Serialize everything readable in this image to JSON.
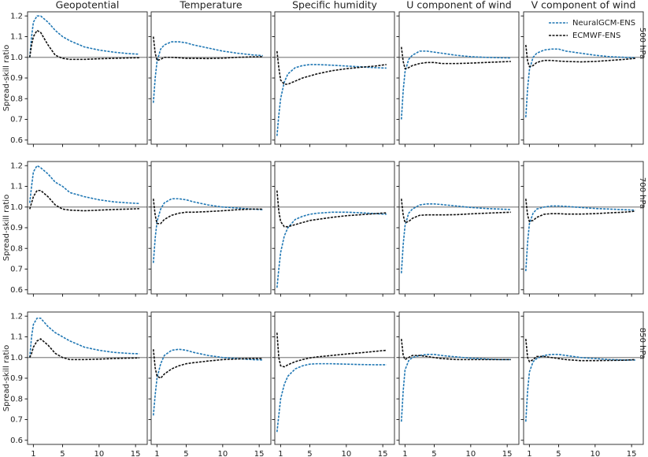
{
  "chart_data": [
    {
      "type": "line",
      "title": "Geopotential",
      "ylabel": "Spread-skill ratio",
      "x": [
        0.5,
        0.75,
        1,
        1.5,
        2,
        3,
        4,
        5,
        6,
        8,
        10,
        12,
        14,
        15.5
      ],
      "xlim": [
        0.2,
        16.6
      ],
      "xticks": [
        1,
        5,
        10,
        15
      ],
      "ylim": [
        0.58,
        1.22
      ],
      "yticks": [
        0.6,
        0.7,
        0.8,
        0.9,
        {
          "value": 1,
          "label": "1.0"
        },
        1.1,
        1.2
      ],
      "hline": 1,
      "linestyle": "dashed",
      "series": [
        {
          "color": "#1f77b4",
          "values": [
            1.0,
            1.1,
            1.17,
            1.2,
            1.2,
            1.17,
            1.13,
            1.1,
            1.08,
            1.05,
            1.035,
            1.025,
            1.018,
            1.015
          ]
        },
        {
          "color": "#111111",
          "values": [
            1.0,
            1.06,
            1.1,
            1.13,
            1.12,
            1.06,
            1.01,
            0.995,
            0.99,
            0.99,
            0.993,
            0.995,
            0.997,
            0.998
          ]
        }
      ]
    },
    {
      "type": "line",
      "title": "Temperature",
      "x": [
        0.5,
        0.75,
        1,
        1.5,
        2,
        3,
        4,
        5,
        6,
        8,
        10,
        12,
        14,
        15.5
      ],
      "xlim": [
        0.2,
        16.6
      ],
      "xticks": [
        1,
        5,
        10,
        15
      ],
      "ylim": [
        0.58,
        1.22
      ],
      "yticks": [
        0.6,
        0.7,
        0.8,
        0.9,
        1,
        1.1,
        1.2
      ],
      "hline": 1,
      "linestyle": "dashed",
      "series": [
        {
          "color": "#1f77b4",
          "values": [
            0.78,
            0.9,
            0.98,
            1.04,
            1.06,
            1.075,
            1.075,
            1.07,
            1.06,
            1.045,
            1.03,
            1.02,
            1.012,
            1.008
          ]
        },
        {
          "color": "#111111",
          "values": [
            1.1,
            1.02,
            0.985,
            0.99,
            1.0,
            1.0,
            0.998,
            0.995,
            0.995,
            0.994,
            0.996,
            1.0,
            1.002,
            1.003
          ]
        }
      ]
    },
    {
      "type": "line",
      "title": "Specific humidity",
      "x": [
        0.5,
        0.75,
        1,
        1.5,
        2,
        3,
        4,
        5,
        6,
        8,
        10,
        12,
        14,
        15.5
      ],
      "xlim": [
        0.2,
        16.6
      ],
      "xticks": [
        1,
        5,
        10,
        15
      ],
      "ylim": [
        0.58,
        1.22
      ],
      "yticks": [
        0.6,
        0.7,
        0.8,
        0.9,
        1,
        1.1,
        1.2
      ],
      "hline": 1,
      "linestyle": "dashed",
      "series": [
        {
          "color": "#1f77b4",
          "values": [
            0.62,
            0.72,
            0.8,
            0.88,
            0.92,
            0.95,
            0.96,
            0.965,
            0.965,
            0.962,
            0.958,
            0.954,
            0.95,
            0.948
          ]
        },
        {
          "color": "#111111",
          "values": [
            1.03,
            0.95,
            0.89,
            0.87,
            0.87,
            0.885,
            0.9,
            0.91,
            0.92,
            0.935,
            0.945,
            0.952,
            0.958,
            0.965
          ]
        }
      ]
    },
    {
      "type": "line",
      "title": "U component of wind",
      "x": [
        0.5,
        0.75,
        1,
        1.5,
        2,
        3,
        4,
        5,
        6,
        8,
        10,
        12,
        14,
        15.5
      ],
      "xlim": [
        0.2,
        16.6
      ],
      "xticks": [
        1,
        5,
        10,
        15
      ],
      "ylim": [
        0.58,
        1.22
      ],
      "yticks": [
        0.6,
        0.7,
        0.8,
        0.9,
        1,
        1.1,
        1.2
      ],
      "hline": 1,
      "linestyle": "dashed",
      "series": [
        {
          "color": "#1f77b4",
          "values": [
            0.7,
            0.84,
            0.93,
            0.99,
            1.01,
            1.03,
            1.03,
            1.025,
            1.02,
            1.01,
            1.003,
            1.0,
            0.998,
            0.997
          ]
        },
        {
          "color": "#111111",
          "values": [
            1.05,
            0.98,
            0.945,
            0.95,
            0.96,
            0.97,
            0.975,
            0.975,
            0.97,
            0.97,
            0.972,
            0.975,
            0.978,
            0.98
          ]
        }
      ]
    },
    {
      "type": "line",
      "title": "V component of wind",
      "row_label": "500 hPa",
      "legend": "upper right",
      "x": [
        0.5,
        0.75,
        1,
        1.5,
        2,
        3,
        4,
        5,
        6,
        8,
        10,
        12,
        14,
        15.5
      ],
      "xlim": [
        0.2,
        16.6
      ],
      "xticks": [
        1,
        5,
        10,
        15
      ],
      "ylim": [
        0.58,
        1.22
      ],
      "yticks": [
        0.6,
        0.7,
        0.8,
        0.9,
        1,
        1.1,
        1.2
      ],
      "hline": 1,
      "linestyle": "dashed",
      "series": [
        {
          "name": "NeuralGCM-ENS",
          "color": "#1f77b4",
          "values": [
            0.71,
            0.85,
            0.94,
            1.0,
            1.02,
            1.035,
            1.04,
            1.04,
            1.03,
            1.02,
            1.01,
            1.003,
            1.0,
            0.998
          ]
        },
        {
          "name": "ECMWF-ENS",
          "color": "#111111",
          "values": [
            1.06,
            0.98,
            0.955,
            0.96,
            0.975,
            0.985,
            0.985,
            0.982,
            0.98,
            0.978,
            0.98,
            0.985,
            0.99,
            0.995
          ]
        }
      ]
    },
    {
      "type": "line",
      "ylabel": "Spread-skill ratio",
      "x": [
        0.5,
        0.75,
        1,
        1.5,
        2,
        3,
        4,
        5,
        6,
        8,
        10,
        12,
        14,
        15.5
      ],
      "xlim": [
        0.2,
        16.6
      ],
      "xticks": [
        1,
        5,
        10,
        15
      ],
      "ylim": [
        0.58,
        1.22
      ],
      "yticks": [
        0.6,
        0.7,
        0.8,
        0.9,
        {
          "value": 1,
          "label": "1.0"
        },
        1.1,
        1.2
      ],
      "hline": 1,
      "linestyle": "dashed",
      "series": [
        {
          "color": "#1f77b4",
          "values": [
            1.02,
            1.1,
            1.17,
            1.2,
            1.19,
            1.16,
            1.12,
            1.1,
            1.07,
            1.05,
            1.035,
            1.025,
            1.02,
            1.017
          ]
        },
        {
          "color": "#111111",
          "values": [
            0.99,
            1.02,
            1.05,
            1.08,
            1.08,
            1.05,
            1.01,
            0.99,
            0.985,
            0.982,
            0.985,
            0.988,
            0.99,
            0.992
          ]
        }
      ]
    },
    {
      "type": "line",
      "x": [
        0.5,
        0.75,
        1,
        1.5,
        2,
        3,
        4,
        5,
        6,
        8,
        10,
        12,
        14,
        15.5
      ],
      "xlim": [
        0.2,
        16.6
      ],
      "xticks": [
        1,
        5,
        10,
        15
      ],
      "ylim": [
        0.58,
        1.22
      ],
      "yticks": [
        0.6,
        0.7,
        0.8,
        0.9,
        1,
        1.1,
        1.2
      ],
      "hline": 1,
      "linestyle": "dashed",
      "series": [
        {
          "color": "#1f77b4",
          "values": [
            0.73,
            0.85,
            0.93,
            0.99,
            1.02,
            1.04,
            1.04,
            1.035,
            1.025,
            1.01,
            1.0,
            0.995,
            0.99,
            0.987
          ]
        },
        {
          "color": "#111111",
          "values": [
            1.04,
            0.96,
            0.92,
            0.92,
            0.94,
            0.96,
            0.97,
            0.975,
            0.975,
            0.978,
            0.982,
            0.987,
            0.99,
            0.99
          ]
        }
      ]
    },
    {
      "type": "line",
      "x": [
        0.5,
        0.75,
        1,
        1.5,
        2,
        3,
        4,
        5,
        6,
        8,
        10,
        12,
        14,
        15.5
      ],
      "xlim": [
        0.2,
        16.6
      ],
      "xticks": [
        1,
        5,
        10,
        15
      ],
      "ylim": [
        0.58,
        1.22
      ],
      "yticks": [
        0.6,
        0.7,
        0.8,
        0.9,
        1,
        1.1,
        1.2
      ],
      "hline": 1,
      "linestyle": "dashed",
      "series": [
        {
          "color": "#1f77b4",
          "values": [
            0.61,
            0.7,
            0.78,
            0.86,
            0.9,
            0.94,
            0.955,
            0.965,
            0.97,
            0.975,
            0.975,
            0.972,
            0.968,
            0.965
          ]
        },
        {
          "color": "#111111",
          "values": [
            1.08,
            0.98,
            0.93,
            0.905,
            0.905,
            0.915,
            0.925,
            0.935,
            0.94,
            0.95,
            0.958,
            0.963,
            0.968,
            0.972
          ]
        }
      ]
    },
    {
      "type": "line",
      "x": [
        0.5,
        0.75,
        1,
        1.5,
        2,
        3,
        4,
        5,
        6,
        8,
        10,
        12,
        14,
        15.5
      ],
      "xlim": [
        0.2,
        16.6
      ],
      "xticks": [
        1,
        5,
        10,
        15
      ],
      "ylim": [
        0.58,
        1.22
      ],
      "yticks": [
        0.6,
        0.7,
        0.8,
        0.9,
        1,
        1.1,
        1.2
      ],
      "hline": 1,
      "linestyle": "dashed",
      "series": [
        {
          "color": "#1f77b4",
          "values": [
            0.68,
            0.82,
            0.91,
            0.97,
            0.99,
            1.01,
            1.015,
            1.015,
            1.012,
            1.005,
            0.998,
            0.993,
            0.99,
            0.988
          ]
        },
        {
          "color": "#111111",
          "values": [
            1.04,
            0.96,
            0.925,
            0.93,
            0.945,
            0.96,
            0.962,
            0.962,
            0.962,
            0.963,
            0.967,
            0.97,
            0.973,
            0.975
          ]
        }
      ]
    },
    {
      "type": "line",
      "row_label": "700 hPa",
      "x": [
        0.5,
        0.75,
        1,
        1.5,
        2,
        3,
        4,
        5,
        6,
        8,
        10,
        12,
        14,
        15.5
      ],
      "xlim": [
        0.2,
        16.6
      ],
      "xticks": [
        1,
        5,
        10,
        15
      ],
      "ylim": [
        0.58,
        1.22
      ],
      "yticks": [
        0.6,
        0.7,
        0.8,
        0.9,
        1,
        1.1,
        1.2
      ],
      "hline": 1,
      "linestyle": "dashed",
      "series": [
        {
          "color": "#1f77b4",
          "values": [
            0.69,
            0.83,
            0.92,
            0.97,
            0.99,
            1.0,
            1.005,
            1.005,
            1.003,
            0.998,
            0.993,
            0.99,
            0.987,
            0.985
          ]
        },
        {
          "color": "#111111",
          "values": [
            1.04,
            0.96,
            0.93,
            0.935,
            0.95,
            0.965,
            0.968,
            0.968,
            0.966,
            0.966,
            0.968,
            0.972,
            0.975,
            0.98
          ]
        }
      ]
    },
    {
      "type": "line",
      "ylabel": "Spread-skill ratio",
      "x": [
        0.5,
        0.75,
        1,
        1.5,
        2,
        3,
        4,
        5,
        6,
        8,
        10,
        12,
        14,
        15.5
      ],
      "xlim": [
        0.2,
        16.6
      ],
      "xticks": [
        1,
        5,
        10,
        15
      ],
      "ylim": [
        0.58,
        1.22
      ],
      "yticks": [
        0.6,
        0.7,
        0.8,
        0.9,
        {
          "value": 1,
          "label": "1.0"
        },
        1.1,
        1.2
      ],
      "hline": 1,
      "linestyle": "dashed",
      "series": [
        {
          "color": "#1f77b4",
          "values": [
            1.0,
            1.1,
            1.16,
            1.19,
            1.19,
            1.15,
            1.12,
            1.1,
            1.08,
            1.05,
            1.035,
            1.025,
            1.02,
            1.018
          ]
        },
        {
          "color": "#111111",
          "values": [
            1.0,
            1.02,
            1.05,
            1.08,
            1.09,
            1.06,
            1.02,
            1.0,
            0.99,
            0.99,
            0.992,
            0.995,
            0.997,
            0.998
          ]
        }
      ]
    },
    {
      "type": "line",
      "x": [
        0.5,
        0.75,
        1,
        1.5,
        2,
        3,
        4,
        5,
        6,
        8,
        10,
        12,
        14,
        15.5
      ],
      "xlim": [
        0.2,
        16.6
      ],
      "xticks": [
        1,
        5,
        10,
        15
      ],
      "ylim": [
        0.58,
        1.22
      ],
      "yticks": [
        0.6,
        0.7,
        0.8,
        0.9,
        1,
        1.1,
        1.2
      ],
      "hline": 1,
      "linestyle": "dashed",
      "series": [
        {
          "color": "#1f77b4",
          "values": [
            0.72,
            0.82,
            0.9,
            0.97,
            1.01,
            1.035,
            1.04,
            1.035,
            1.025,
            1.01,
            1.0,
            0.995,
            0.99,
            0.988
          ]
        },
        {
          "color": "#111111",
          "values": [
            1.04,
            0.95,
            0.91,
            0.9,
            0.92,
            0.945,
            0.96,
            0.97,
            0.975,
            0.983,
            0.99,
            0.993,
            0.995,
            0.995
          ]
        }
      ]
    },
    {
      "type": "line",
      "x": [
        0.5,
        0.75,
        1,
        1.5,
        2,
        3,
        4,
        5,
        6,
        8,
        10,
        12,
        14,
        15.5
      ],
      "xlim": [
        0.2,
        16.6
      ],
      "xticks": [
        1,
        5,
        10,
        15
      ],
      "ylim": [
        0.58,
        1.22
      ],
      "yticks": [
        0.6,
        0.7,
        0.8,
        0.9,
        1,
        1.1,
        1.2
      ],
      "hline": 1,
      "linestyle": "dashed",
      "series": [
        {
          "color": "#1f77b4",
          "values": [
            0.64,
            0.72,
            0.8,
            0.87,
            0.91,
            0.945,
            0.96,
            0.968,
            0.97,
            0.97,
            0.968,
            0.966,
            0.965,
            0.965
          ]
        },
        {
          "color": "#111111",
          "values": [
            1.12,
            1.0,
            0.96,
            0.955,
            0.965,
            0.98,
            0.99,
            0.998,
            1.003,
            1.01,
            1.017,
            1.023,
            1.03,
            1.035
          ]
        }
      ]
    },
    {
      "type": "line",
      "x": [
        0.5,
        0.75,
        1,
        1.5,
        2,
        3,
        4,
        5,
        6,
        8,
        10,
        12,
        14,
        15.5
      ],
      "xlim": [
        0.2,
        16.6
      ],
      "xticks": [
        1,
        5,
        10,
        15
      ],
      "ylim": [
        0.58,
        1.22
      ],
      "yticks": [
        0.6,
        0.7,
        0.8,
        0.9,
        1,
        1.1,
        1.2
      ],
      "hline": 1,
      "linestyle": "dashed",
      "series": [
        {
          "color": "#1f77b4",
          "values": [
            0.69,
            0.84,
            0.94,
            0.985,
            1.0,
            1.01,
            1.015,
            1.015,
            1.01,
            1.003,
            0.997,
            0.993,
            0.99,
            0.99
          ]
        },
        {
          "color": "#111111",
          "values": [
            1.09,
            1.01,
            0.99,
            1.0,
            1.01,
            1.01,
            1.005,
            1.0,
            0.995,
            0.99,
            0.99,
            0.99,
            0.99,
            0.99
          ]
        }
      ]
    },
    {
      "type": "line",
      "row_label": "850 hPa",
      "x": [
        0.5,
        0.75,
        1,
        1.5,
        2,
        3,
        4,
        5,
        6,
        8,
        10,
        12,
        14,
        15.5
      ],
      "xlim": [
        0.2,
        16.6
      ],
      "xticks": [
        1,
        5,
        10,
        15
      ],
      "ylim": [
        0.58,
        1.22
      ],
      "yticks": [
        0.6,
        0.7,
        0.8,
        0.9,
        1,
        1.1,
        1.2
      ],
      "hline": 1,
      "linestyle": "dashed",
      "series": [
        {
          "color": "#1f77b4",
          "values": [
            0.69,
            0.84,
            0.93,
            0.98,
            0.995,
            1.01,
            1.015,
            1.015,
            1.01,
            1.0,
            0.995,
            0.99,
            0.988,
            0.988
          ]
        },
        {
          "color": "#111111",
          "values": [
            1.09,
            1.0,
            0.98,
            0.99,
            1.005,
            1.005,
            1.0,
            0.995,
            0.99,
            0.985,
            0.985,
            0.986,
            0.987,
            0.99
          ]
        }
      ]
    }
  ]
}
